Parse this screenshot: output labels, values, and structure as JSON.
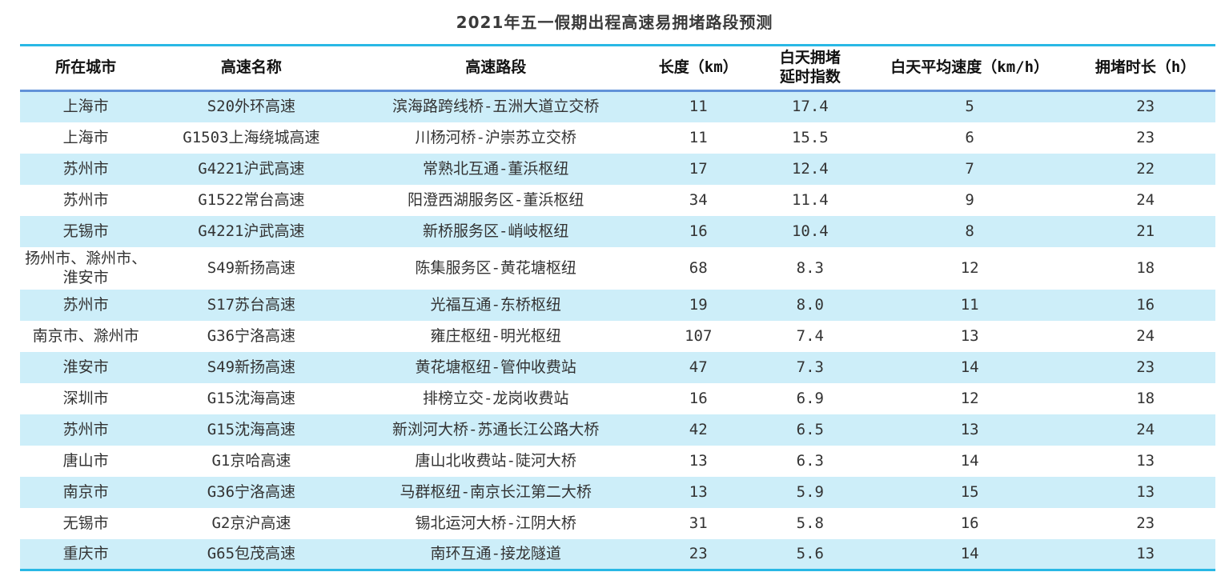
{
  "title": "2021年五一假期出程高速易拥堵路段预测",
  "colors": {
    "accent_cyan_rule": "#29b8e5",
    "header_rule_blue": "#6292d8",
    "zebra_row_blue": "#cdeef9",
    "title_text": "#3a3a3a",
    "body_text": "#333333"
  },
  "chart_data": {
    "type": "table",
    "title": "2021年五一假期出程高速易拥堵路段预测",
    "columns": [
      "所在城市",
      "高速名称",
      "高速路段",
      "长度（km）",
      "白天拥堵\n延时指数",
      "白天平均速度（km/h）",
      "拥堵时长（h）"
    ],
    "column_keys": [
      "city",
      "highway-name",
      "highway-section",
      "length-km",
      "daytime-delay-index",
      "daytime-avg-speed",
      "congestion-duration-h"
    ],
    "rows": [
      [
        "上海市",
        "S20外环高速",
        "滨海路跨线桥-五洲大道立交桥",
        "11",
        "17.4",
        "5",
        "23"
      ],
      [
        "上海市",
        "G1503上海绕城高速",
        "川杨河桥-沪崇苏立交桥",
        "11",
        "15.5",
        "6",
        "23"
      ],
      [
        "苏州市",
        "G4221沪武高速",
        "常熟北互通-董浜枢纽",
        "17",
        "12.4",
        "7",
        "22"
      ],
      [
        "苏州市",
        "G1522常台高速",
        "阳澄西湖服务区-董浜枢纽",
        "34",
        "11.4",
        "9",
        "24"
      ],
      [
        "无锡市",
        "G4221沪武高速",
        "新桥服务区-峭岐枢纽",
        "16",
        "10.4",
        "8",
        "21"
      ],
      [
        "扬州市、滁州市、淮安市",
        "S49新扬高速",
        "陈集服务区-黄花塘枢纽",
        "68",
        "8.3",
        "12",
        "18"
      ],
      [
        "苏州市",
        "S17苏台高速",
        "光福互通-东桥枢纽",
        "19",
        "8.0",
        "11",
        "16"
      ],
      [
        "南京市、滁州市",
        "G36宁洛高速",
        "雍庄枢纽-明光枢纽",
        "107",
        "7.4",
        "13",
        "24"
      ],
      [
        "淮安市",
        "S49新扬高速",
        "黄花塘枢纽-管仲收费站",
        "47",
        "7.3",
        "14",
        "23"
      ],
      [
        "深圳市",
        "G15沈海高速",
        "排榜立交-龙岗收费站",
        "16",
        "6.9",
        "12",
        "18"
      ],
      [
        "苏州市",
        "G15沈海高速",
        "新浏河大桥-苏通长江公路大桥",
        "42",
        "6.5",
        "13",
        "24"
      ],
      [
        "唐山市",
        "G1京哈高速",
        "唐山北收费站-陡河大桥",
        "13",
        "6.3",
        "14",
        "13"
      ],
      [
        "南京市",
        "G36宁洛高速",
        "马群枢纽-南京长江第二大桥",
        "13",
        "5.9",
        "15",
        "13"
      ],
      [
        "无锡市",
        "G2京沪高速",
        "锡北运河大桥-江阴大桥",
        "31",
        "5.8",
        "16",
        "23"
      ],
      [
        "重庆市",
        "G65包茂高速",
        "南环互通-接龙隧道",
        "23",
        "5.6",
        "14",
        "13"
      ]
    ]
  }
}
